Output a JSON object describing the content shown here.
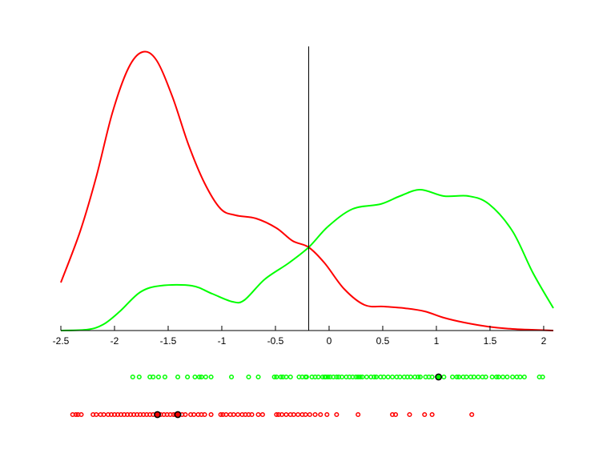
{
  "chart_data": {
    "type": "line",
    "title": "",
    "xlabel": "",
    "ylabel": "",
    "xlim": [
      -2.5,
      2.09
    ],
    "ylim": [
      0,
      0.8725
    ],
    "grid": false,
    "x_ticks": [
      -2.5,
      -2,
      -1.5,
      -1,
      -0.5,
      0,
      0.5,
      1,
      1.5,
      2
    ],
    "x_tick_labels": [
      "-2.5",
      "-2",
      "-1.5",
      "-1",
      "-0.5",
      "0",
      "0.5",
      "1",
      "1.5",
      "2"
    ],
    "threshold_x": -0.19,
    "series": [
      {
        "color": "#ff0000",
        "x": [
          -2.5,
          -2.32,
          -2.17,
          -2.02,
          -1.87,
          -1.74,
          -1.61,
          -1.46,
          -1.31,
          -1.16,
          -1.01,
          -0.87,
          -0.68,
          -0.49,
          -0.34,
          -0.19,
          -0.04,
          0.14,
          0.33,
          0.51,
          0.7,
          0.89,
          1.07,
          1.26,
          1.49,
          1.71,
          2.09
        ],
        "y": [
          0.15,
          0.31,
          0.48,
          0.68,
          0.82,
          0.87,
          0.845,
          0.73,
          0.58,
          0.46,
          0.38,
          0.36,
          0.35,
          0.32,
          0.28,
          0.26,
          0.21,
          0.13,
          0.08,
          0.075,
          0.07,
          0.06,
          0.04,
          0.025,
          0.012,
          0.005,
          0.0
        ]
      },
      {
        "color": "#00ff00",
        "x": [
          -2.5,
          -2.25,
          -2.1,
          -1.95,
          -1.76,
          -1.57,
          -1.28,
          -1.09,
          -0.9,
          -0.79,
          -0.6,
          -0.38,
          -0.19,
          -0.01,
          0.22,
          0.48,
          0.66,
          0.85,
          1.07,
          1.3,
          1.49,
          1.71,
          1.9,
          2.09
        ],
        "y": [
          0,
          0.003,
          0.02,
          0.06,
          0.12,
          0.14,
          0.14,
          0.115,
          0.09,
          0.095,
          0.16,
          0.21,
          0.26,
          0.325,
          0.38,
          0.395,
          0.42,
          0.44,
          0.42,
          0.42,
          0.395,
          0.31,
          0.18,
          0.07
        ]
      }
    ],
    "rugs": [
      {
        "color": "#00ff00",
        "points": [
          -1.83,
          -1.77,
          -1.67,
          -1.64,
          -1.59,
          -1.53,
          -1.41,
          -1.32,
          -1.25,
          -1.21,
          -1.19,
          -1.15,
          -1.1,
          -0.91,
          -0.75,
          -0.66,
          -0.51,
          -0.49,
          -0.45,
          -0.43,
          -0.4,
          -0.36,
          -0.28,
          -0.25,
          -0.22,
          -0.21,
          -0.16,
          -0.13,
          -0.1,
          -0.06,
          -0.04,
          -0.03,
          -0.01,
          0.01,
          0.04,
          0.07,
          0.09,
          0.12,
          0.16,
          0.19,
          0.22,
          0.25,
          0.27,
          0.29,
          0.31,
          0.35,
          0.39,
          0.42,
          0.44,
          0.48,
          0.51,
          0.55,
          0.59,
          0.63,
          0.66,
          0.7,
          0.73,
          0.76,
          0.8,
          0.83,
          0.85,
          0.9,
          0.93,
          0.96,
          1.07,
          1.15,
          1.19,
          1.21,
          1.25,
          1.28,
          1.32,
          1.35,
          1.39,
          1.43,
          1.46,
          1.52,
          1.56,
          1.58,
          1.62,
          1.66,
          1.71,
          1.75,
          1.78,
          1.82,
          1.96,
          1.99
        ],
        "highlighted": [
          1.02
        ]
      },
      {
        "color": "#ff0000",
        "points": [
          -2.39,
          -2.36,
          -2.34,
          -2.31,
          -2.2,
          -2.17,
          -2.13,
          -2.1,
          -2.06,
          -2.03,
          -2.0,
          -1.97,
          -1.94,
          -1.91,
          -1.88,
          -1.85,
          -1.82,
          -1.79,
          -1.76,
          -1.73,
          -1.7,
          -1.67,
          -1.64,
          -1.61,
          -1.57,
          -1.54,
          -1.51,
          -1.48,
          -1.45,
          -1.43,
          -1.37,
          -1.34,
          -1.29,
          -1.26,
          -1.22,
          -1.19,
          -1.16,
          -1.1,
          -1.01,
          -0.99,
          -0.96,
          -0.92,
          -0.89,
          -0.85,
          -0.81,
          -0.78,
          -0.75,
          -0.72,
          -0.66,
          -0.62,
          -0.49,
          -0.47,
          -0.44,
          -0.4,
          -0.36,
          -0.33,
          -0.29,
          -0.25,
          -0.22,
          -0.18,
          -0.13,
          -0.08,
          -0.02,
          0.07,
          0.27,
          0.59,
          0.62,
          0.75,
          0.89,
          0.96,
          1.33
        ],
        "highlighted": [
          -1.6,
          -1.41
        ]
      }
    ],
    "highlight_color": "#000000"
  }
}
